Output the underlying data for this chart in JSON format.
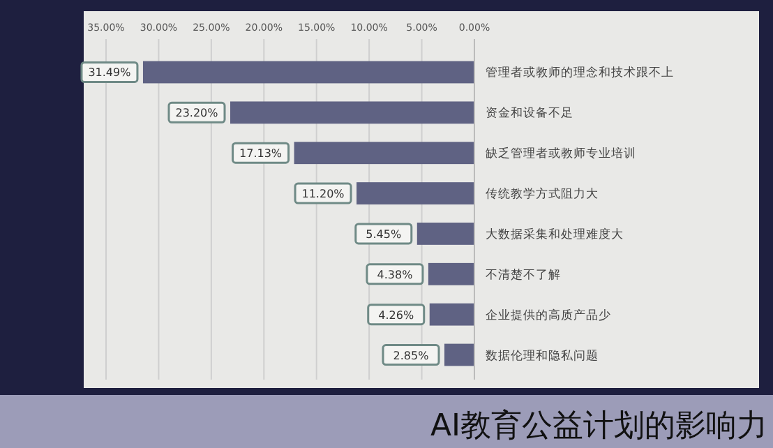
{
  "chart_data": {
    "type": "bar",
    "orientation": "horizontal",
    "title": "AI教育公益计划的影响力",
    "categories": [
      "管理者或教师的理念和技术跟不上",
      "资金和设备不足",
      "缺乏管理者或教师专业培训",
      "传统教学方式阻力大",
      "大数据采集和处理难度大",
      "不清楚不了解",
      "企业提供的高质产品少",
      "数据伦理和隐私问题"
    ],
    "values": [
      31.49,
      23.2,
      17.13,
      11.2,
      5.45,
      4.38,
      4.26,
      2.85
    ],
    "value_labels": [
      "31.49%",
      "23.20%",
      "17.13%",
      "11.20%",
      "5.45%",
      "4.38%",
      "4.26%",
      "2.85%"
    ],
    "color": "#5f6283",
    "xlim": [
      35,
      0
    ],
    "xticks": [
      {
        "value": 0,
        "label": "0.00%"
      },
      {
        "value": 5,
        "label": "5.00%"
      },
      {
        "value": 10,
        "label": "10.00%"
      },
      {
        "value": 15,
        "label": "15.00%"
      },
      {
        "value": 20,
        "label": "20.00%"
      },
      {
        "value": 25,
        "label": "25.00%"
      },
      {
        "value": 30,
        "label": "30.00%"
      },
      {
        "value": 35,
        "label": "35.00%"
      }
    ],
    "grid": "x"
  }
}
